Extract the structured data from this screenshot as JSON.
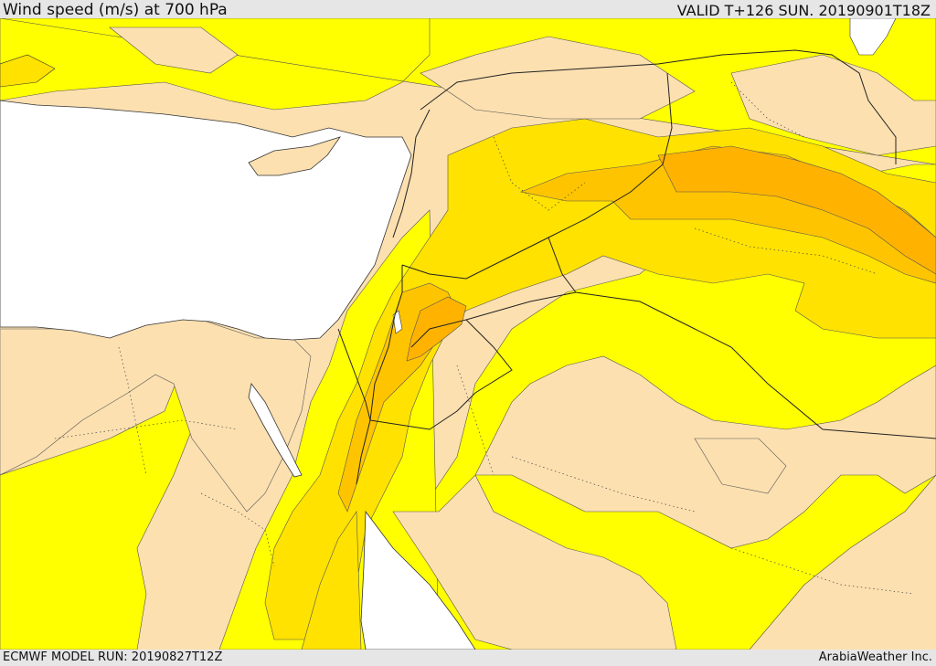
{
  "header": {
    "title": "Wind speed (m/s) at 700 hPa",
    "valid": "VALID T+126 SUN. 20190901T18Z"
  },
  "footer": {
    "model_run": "ECMWF MODEL RUN: 20190827T12Z",
    "credit": "ArabiaWeather Inc."
  },
  "map": {
    "colors": {
      "sea": "#ffffff",
      "land_calm": "#fde0b0",
      "band_1": "#ffff00",
      "band_2": "#ffe200",
      "band_3": "#ffc400",
      "band_4": "#ffb300",
      "border": "#222222",
      "contour": "#555555"
    }
  }
}
